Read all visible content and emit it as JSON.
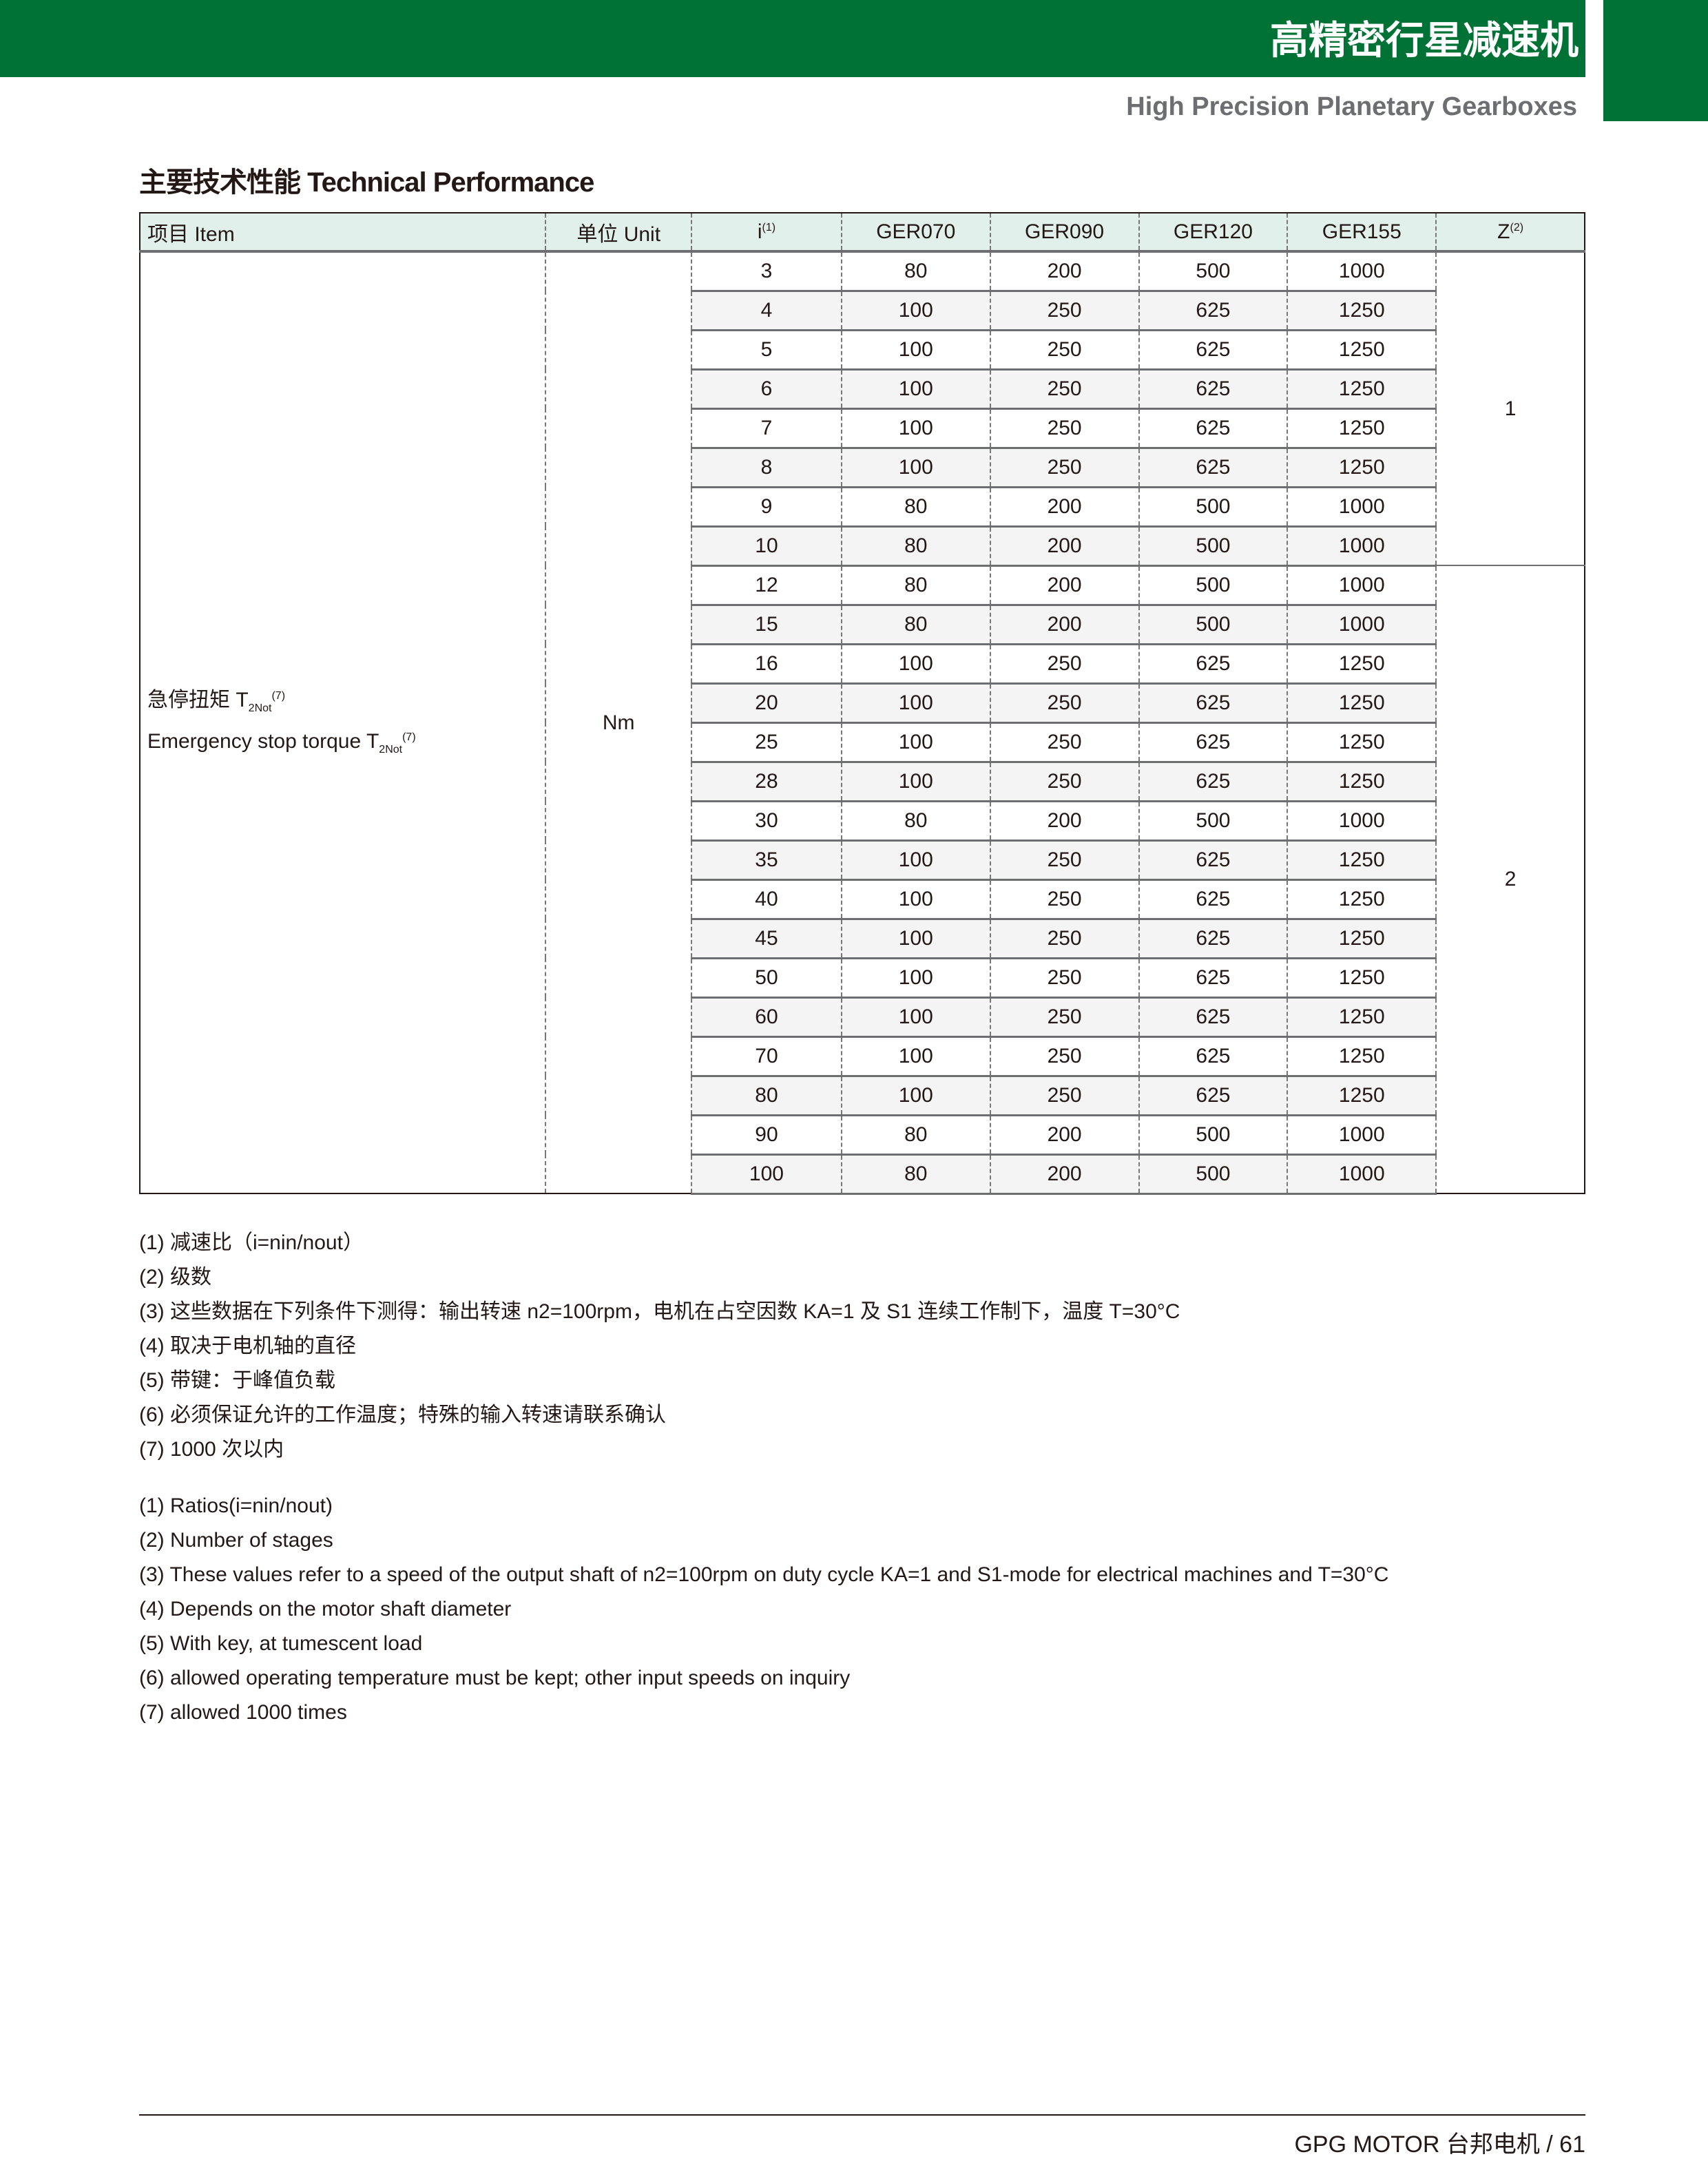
{
  "header": {
    "title_cn": "高精密行星减速机",
    "title_en": "High Precision Planetary Gearboxes",
    "brand_color": "#007236"
  },
  "section": {
    "heading": "主要技术性能 Technical Performance"
  },
  "table": {
    "headers": {
      "item": "项目 Item",
      "unit": "单位 Unit",
      "i": "i",
      "i_note": "(1)",
      "models": [
        "GER070",
        "GER090",
        "GER120",
        "GER155"
      ],
      "z": "Z",
      "z_note": "(2)"
    },
    "item_cn": "急停扭矩 T",
    "item_en": "Emergency stop torque T",
    "item_sub": "2Not",
    "item_note": "(7)",
    "unit": "Nm",
    "z_groups": [
      {
        "value": "1",
        "rows": 8
      },
      {
        "value": "2",
        "rows": 16
      }
    ],
    "rows": [
      [
        "3",
        "80",
        "200",
        "500",
        "1000"
      ],
      [
        "4",
        "100",
        "250",
        "625",
        "1250"
      ],
      [
        "5",
        "100",
        "250",
        "625",
        "1250"
      ],
      [
        "6",
        "100",
        "250",
        "625",
        "1250"
      ],
      [
        "7",
        "100",
        "250",
        "625",
        "1250"
      ],
      [
        "8",
        "100",
        "250",
        "625",
        "1250"
      ],
      [
        "9",
        "80",
        "200",
        "500",
        "1000"
      ],
      [
        "10",
        "80",
        "200",
        "500",
        "1000"
      ],
      [
        "12",
        "80",
        "200",
        "500",
        "1000"
      ],
      [
        "15",
        "80",
        "200",
        "500",
        "1000"
      ],
      [
        "16",
        "100",
        "250",
        "625",
        "1250"
      ],
      [
        "20",
        "100",
        "250",
        "625",
        "1250"
      ],
      [
        "25",
        "100",
        "250",
        "625",
        "1250"
      ],
      [
        "28",
        "100",
        "250",
        "625",
        "1250"
      ],
      [
        "30",
        "80",
        "200",
        "500",
        "1000"
      ],
      [
        "35",
        "100",
        "250",
        "625",
        "1250"
      ],
      [
        "40",
        "100",
        "250",
        "625",
        "1250"
      ],
      [
        "45",
        "100",
        "250",
        "625",
        "1250"
      ],
      [
        "50",
        "100",
        "250",
        "625",
        "1250"
      ],
      [
        "60",
        "100",
        "250",
        "625",
        "1250"
      ],
      [
        "70",
        "100",
        "250",
        "625",
        "1250"
      ],
      [
        "80",
        "100",
        "250",
        "625",
        "1250"
      ],
      [
        "90",
        "80",
        "200",
        "500",
        "1000"
      ],
      [
        "100",
        "80",
        "200",
        "500",
        "1000"
      ]
    ]
  },
  "notes_cn": [
    "(1) 减速比（i=nin/nout）",
    "(2) 级数",
    "(3) 这些数据在下列条件下测得：输出转速 n2=100rpm，电机在占空因数 KA=1 及 S1 连续工作制下，温度 T=30°C",
    "(4) 取决于电机轴的直径",
    "(5) 带键：于峰值负载",
    "(6) 必须保证允许的工作温度；特殊的输入转速请联系确认",
    "(7) 1000 次以内"
  ],
  "notes_en": [
    "(1) Ratios(i=nin/nout)",
    "(2) Number of stages",
    "(3) These values refer to a speed of the output shaft of n2=100rpm on duty cycle KA=1 and S1-mode for electrical machines and T=30°C",
    "(4) Depends on the motor shaft diameter",
    "(5) With key, at tumescent load",
    "(6) allowed operating temperature must be kept; other input speeds on inquiry",
    "(7) allowed 1000 times"
  ],
  "footer": {
    "text": "GPG MOTOR 台邦电机  /  61"
  }
}
